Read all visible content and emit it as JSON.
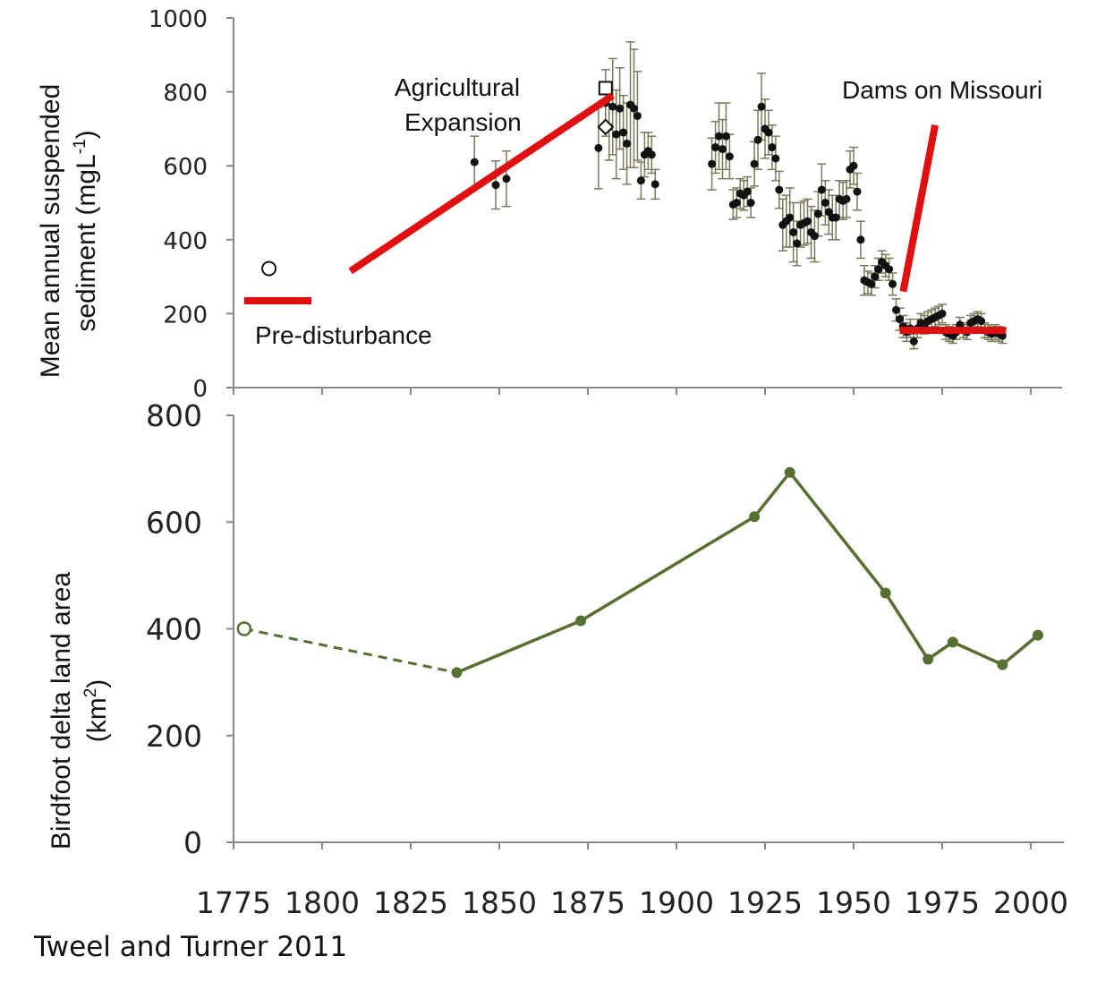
{
  "chart_data": [
    {
      "type": "scatter",
      "name": "suspended-sediment",
      "ylabel_line1": "Mean annual suspended",
      "ylabel_line2": "sediment (mgL",
      "ylabel_sup": "-1",
      "ylabel_close": ")",
      "ylim": [
        0,
        1000
      ],
      "xlim": [
        1775,
        2010
      ],
      "yticks": [
        "0",
        "200",
        "400",
        "600",
        "800",
        "1000"
      ],
      "ytick_values": [
        0,
        200,
        400,
        600,
        800,
        1000
      ],
      "colors": {
        "points": "#111111",
        "errorbars": "#7a7a5a",
        "trend": "#e01010"
      },
      "annotations": {
        "pre": "Pre-disturbance",
        "ag1": "Agricultural",
        "ag2": "Expansion",
        "dams": "Dams on Missouri"
      },
      "open_markers": [
        {
          "shape": "circle",
          "x": 1785,
          "y": 322
        },
        {
          "shape": "square",
          "x": 1880,
          "y": 810
        },
        {
          "shape": "diamond",
          "x": 1880,
          "y": 705
        }
      ],
      "trend_lines": [
        {
          "x1": 1778,
          "y1": 235,
          "x2": 1797,
          "y2": 235
        },
        {
          "x1": 1808,
          "y1": 315,
          "x2": 1882,
          "y2": 790
        },
        {
          "x1": 1964,
          "y1": 260,
          "x2": 1973,
          "y2": 710
        },
        {
          "x1": 1963,
          "y1": 155,
          "x2": 1993,
          "y2": 155
        }
      ],
      "points": [
        {
          "x": 1843,
          "y": 610,
          "e": 70
        },
        {
          "x": 1849,
          "y": 548,
          "e": 65
        },
        {
          "x": 1852,
          "y": 565,
          "e": 75
        },
        {
          "x": 1878,
          "y": 648,
          "e": 110
        },
        {
          "x": 1880,
          "y": 770,
          "e": 90
        },
        {
          "x": 1881,
          "y": 705,
          "e": 90
        },
        {
          "x": 1882,
          "y": 760,
          "e": 130
        },
        {
          "x": 1883,
          "y": 685,
          "e": 120
        },
        {
          "x": 1884,
          "y": 755,
          "e": 110
        },
        {
          "x": 1885,
          "y": 690,
          "e": 100
        },
        {
          "x": 1886,
          "y": 660,
          "e": 110
        },
        {
          "x": 1887,
          "y": 765,
          "e": 170
        },
        {
          "x": 1888,
          "y": 755,
          "e": 160
        },
        {
          "x": 1889,
          "y": 735,
          "e": 120
        },
        {
          "x": 1890,
          "y": 560,
          "e": 50
        },
        {
          "x": 1891,
          "y": 630,
          "e": 60
        },
        {
          "x": 1892,
          "y": 640,
          "e": 50
        },
        {
          "x": 1893,
          "y": 630,
          "e": 50
        },
        {
          "x": 1894,
          "y": 550,
          "e": 40
        },
        {
          "x": 1910,
          "y": 605,
          "e": 70
        },
        {
          "x": 1911,
          "y": 650,
          "e": 70
        },
        {
          "x": 1912,
          "y": 680,
          "e": 90
        },
        {
          "x": 1913,
          "y": 645,
          "e": 80
        },
        {
          "x": 1914,
          "y": 680,
          "e": 90
        },
        {
          "x": 1915,
          "y": 625,
          "e": 60
        },
        {
          "x": 1916,
          "y": 495,
          "e": 40
        },
        {
          "x": 1917,
          "y": 500,
          "e": 40
        },
        {
          "x": 1918,
          "y": 525,
          "e": 40
        },
        {
          "x": 1919,
          "y": 520,
          "e": 40
        },
        {
          "x": 1920,
          "y": 530,
          "e": 40
        },
        {
          "x": 1921,
          "y": 500,
          "e": 40
        },
        {
          "x": 1922,
          "y": 605,
          "e": 60
        },
        {
          "x": 1923,
          "y": 670,
          "e": 80
        },
        {
          "x": 1924,
          "y": 760,
          "e": 90
        },
        {
          "x": 1925,
          "y": 700,
          "e": 80
        },
        {
          "x": 1926,
          "y": 690,
          "e": 60
        },
        {
          "x": 1927,
          "y": 650,
          "e": 60
        },
        {
          "x": 1928,
          "y": 620,
          "e": 60
        },
        {
          "x": 1929,
          "y": 535,
          "e": 50
        },
        {
          "x": 1930,
          "y": 440,
          "e": 70
        },
        {
          "x": 1931,
          "y": 450,
          "e": 70
        },
        {
          "x": 1932,
          "y": 460,
          "e": 80
        },
        {
          "x": 1933,
          "y": 420,
          "e": 80
        },
        {
          "x": 1934,
          "y": 390,
          "e": 60
        },
        {
          "x": 1935,
          "y": 440,
          "e": 60
        },
        {
          "x": 1936,
          "y": 445,
          "e": 60
        },
        {
          "x": 1937,
          "y": 450,
          "e": 60
        },
        {
          "x": 1938,
          "y": 420,
          "e": 70
        },
        {
          "x": 1939,
          "y": 410,
          "e": 70
        },
        {
          "x": 1940,
          "y": 470,
          "e": 60
        },
        {
          "x": 1941,
          "y": 535,
          "e": 70
        },
        {
          "x": 1942,
          "y": 500,
          "e": 60
        },
        {
          "x": 1943,
          "y": 475,
          "e": 60
        },
        {
          "x": 1944,
          "y": 460,
          "e": 60
        },
        {
          "x": 1945,
          "y": 460,
          "e": 60
        },
        {
          "x": 1946,
          "y": 510,
          "e": 50
        },
        {
          "x": 1947,
          "y": 505,
          "e": 50
        },
        {
          "x": 1948,
          "y": 510,
          "e": 50
        },
        {
          "x": 1949,
          "y": 590,
          "e": 50
        },
        {
          "x": 1950,
          "y": 600,
          "e": 50
        },
        {
          "x": 1951,
          "y": 530,
          "e": 50
        },
        {
          "x": 1952,
          "y": 400,
          "e": 50
        },
        {
          "x": 1953,
          "y": 290,
          "e": 40
        },
        {
          "x": 1954,
          "y": 285,
          "e": 30
        },
        {
          "x": 1955,
          "y": 280,
          "e": 30
        },
        {
          "x": 1956,
          "y": 300,
          "e": 30
        },
        {
          "x": 1957,
          "y": 320,
          "e": 30
        },
        {
          "x": 1958,
          "y": 340,
          "e": 30
        },
        {
          "x": 1959,
          "y": 330,
          "e": 30
        },
        {
          "x": 1960,
          "y": 320,
          "e": 30
        },
        {
          "x": 1961,
          "y": 280,
          "e": 30
        },
        {
          "x": 1962,
          "y": 210,
          "e": 30
        },
        {
          "x": 1963,
          "y": 185,
          "e": 30
        },
        {
          "x": 1964,
          "y": 165,
          "e": 30
        },
        {
          "x": 1965,
          "y": 150,
          "e": 25
        },
        {
          "x": 1966,
          "y": 160,
          "e": 25
        },
        {
          "x": 1967,
          "y": 125,
          "e": 20
        },
        {
          "x": 1968,
          "y": 160,
          "e": 25
        },
        {
          "x": 1969,
          "y": 175,
          "e": 25
        },
        {
          "x": 1970,
          "y": 170,
          "e": 25
        },
        {
          "x": 1971,
          "y": 180,
          "e": 25
        },
        {
          "x": 1972,
          "y": 185,
          "e": 25
        },
        {
          "x": 1973,
          "y": 190,
          "e": 25
        },
        {
          "x": 1974,
          "y": 195,
          "e": 25
        },
        {
          "x": 1975,
          "y": 200,
          "e": 25
        },
        {
          "x": 1976,
          "y": 150,
          "e": 20
        },
        {
          "x": 1977,
          "y": 145,
          "e": 20
        },
        {
          "x": 1978,
          "y": 140,
          "e": 20
        },
        {
          "x": 1979,
          "y": 150,
          "e": 20
        },
        {
          "x": 1980,
          "y": 170,
          "e": 20
        },
        {
          "x": 1981,
          "y": 155,
          "e": 20
        },
        {
          "x": 1982,
          "y": 150,
          "e": 20
        },
        {
          "x": 1983,
          "y": 175,
          "e": 20
        },
        {
          "x": 1984,
          "y": 180,
          "e": 20
        },
        {
          "x": 1985,
          "y": 185,
          "e": 20
        },
        {
          "x": 1986,
          "y": 180,
          "e": 20
        },
        {
          "x": 1987,
          "y": 155,
          "e": 20
        },
        {
          "x": 1988,
          "y": 150,
          "e": 20
        },
        {
          "x": 1989,
          "y": 145,
          "e": 20
        },
        {
          "x": 1990,
          "y": 150,
          "e": 20
        },
        {
          "x": 1991,
          "y": 145,
          "e": 20
        },
        {
          "x": 1992,
          "y": 140,
          "e": 20
        }
      ]
    },
    {
      "type": "line",
      "name": "birdfoot-delta-land-area",
      "ylabel_line1": "Birdfoot delta land area",
      "ylabel_line2": "(km",
      "ylabel_sup": "2",
      "ylabel_close": ")",
      "ylim": [
        0,
        800
      ],
      "xlim": [
        1775,
        2010
      ],
      "yticks": [
        "0",
        "200",
        "400",
        "600",
        "800"
      ],
      "ytick_values": [
        0,
        200,
        400,
        600,
        800
      ],
      "xticks": [
        "1775",
        "1800",
        "1825",
        "1850",
        "1875",
        "1900",
        "1925",
        "1950",
        "1975",
        "2000"
      ],
      "xtick_values": [
        1775,
        1800,
        1825,
        1850,
        1875,
        1900,
        1925,
        1950,
        1975,
        2000
      ],
      "colors": {
        "line": "#557030"
      },
      "dashed_segment": [
        {
          "x": 1778,
          "y": 400
        },
        {
          "x": 1838,
          "y": 318
        }
      ],
      "series": [
        {
          "x": 1838,
          "y": 318
        },
        {
          "x": 1873,
          "y": 415
        },
        {
          "x": 1922,
          "y": 610
        },
        {
          "x": 1932,
          "y": 693
        },
        {
          "x": 1959,
          "y": 467
        },
        {
          "x": 1971,
          "y": 343
        },
        {
          "x": 1978,
          "y": 375
        },
        {
          "x": 1992,
          "y": 333
        },
        {
          "x": 2002,
          "y": 388
        }
      ]
    }
  ],
  "citation": "Tweel and Turner 2011"
}
